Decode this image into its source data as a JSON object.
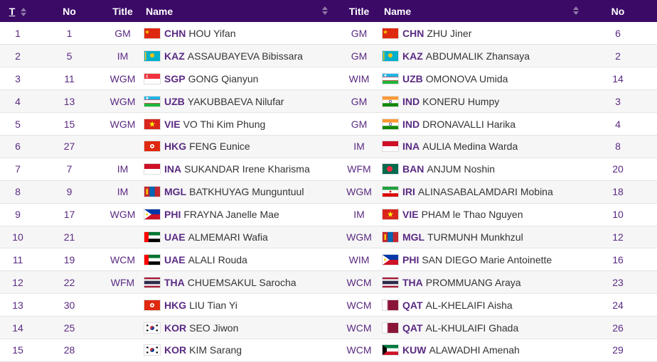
{
  "columns": {
    "table": "T",
    "no": "No",
    "title": "Title",
    "name": "Name",
    "title2": "Title",
    "name2": "Name",
    "no2": "No"
  },
  "rows": [
    {
      "t": "1",
      "no": "1",
      "title": "GM",
      "fed": "CHN",
      "name": "HOU Yifan",
      "title2": "GM",
      "fed2": "CHN",
      "name2": "ZHU Jiner",
      "no2": "6"
    },
    {
      "t": "2",
      "no": "5",
      "title": "IM",
      "fed": "KAZ",
      "name": "ASSAUBAYEVA Bibissara",
      "title2": "GM",
      "fed2": "KAZ",
      "name2": "ABDUMALIK Zhansaya",
      "no2": "2"
    },
    {
      "t": "3",
      "no": "11",
      "title": "WGM",
      "fed": "SGP",
      "name": "GONG Qianyun",
      "title2": "WIM",
      "fed2": "UZB",
      "name2": "OMONOVA Umida",
      "no2": "14"
    },
    {
      "t": "4",
      "no": "13",
      "title": "WGM",
      "fed": "UZB",
      "name": "YAKUBBAEVA Nilufar",
      "title2": "GM",
      "fed2": "IND",
      "name2": "KONERU Humpy",
      "no2": "3"
    },
    {
      "t": "5",
      "no": "15",
      "title": "WGM",
      "fed": "VIE",
      "name": "VO Thi Kim Phung",
      "title2": "GM",
      "fed2": "IND",
      "name2": "DRONAVALLI Harika",
      "no2": "4"
    },
    {
      "t": "6",
      "no": "27",
      "title": "",
      "fed": "HKG",
      "name": "FENG Eunice",
      "title2": "IM",
      "fed2": "INA",
      "name2": "AULIA Medina Warda",
      "no2": "8"
    },
    {
      "t": "7",
      "no": "7",
      "title": "IM",
      "fed": "INA",
      "name": "SUKANDAR Irene Kharisma",
      "title2": "WFM",
      "fed2": "BAN",
      "name2": "ANJUM Noshin",
      "no2": "20"
    },
    {
      "t": "8",
      "no": "9",
      "title": "IM",
      "fed": "MGL",
      "name": "BATKHUYAG Munguntuul",
      "title2": "WGM",
      "fed2": "IRI",
      "name2": "ALINASABALAMDARI Mobina",
      "no2": "18"
    },
    {
      "t": "9",
      "no": "17",
      "title": "WGM",
      "fed": "PHI",
      "name": "FRAYNA Janelle Mae",
      "title2": "IM",
      "fed2": "VIE",
      "name2": "PHAM le Thao Nguyen",
      "no2": "10"
    },
    {
      "t": "10",
      "no": "21",
      "title": "",
      "fed": "UAE",
      "name": "ALMEMARI Wafia",
      "title2": "WGM",
      "fed2": "MGL",
      "name2": "TURMUNH Munkhzul",
      "no2": "12"
    },
    {
      "t": "11",
      "no": "19",
      "title": "WCM",
      "fed": "UAE",
      "name": "ALALI Rouda",
      "title2": "WIM",
      "fed2": "PHI",
      "name2": "SAN DIEGO Marie Antoinette",
      "no2": "16"
    },
    {
      "t": "12",
      "no": "22",
      "title": "WFM",
      "fed": "THA",
      "name": "CHUEMSAKUL Sarocha",
      "title2": "WCM",
      "fed2": "THA",
      "name2": "PROMMUANG Araya",
      "no2": "23"
    },
    {
      "t": "13",
      "no": "30",
      "title": "",
      "fed": "HKG",
      "name": "LIU Tian Yi",
      "title2": "WCM",
      "fed2": "QAT",
      "name2": "AL-KHELAIFI Aisha",
      "no2": "24"
    },
    {
      "t": "14",
      "no": "25",
      "title": "",
      "fed": "KOR",
      "name": "SEO Jiwon",
      "title2": "WCM",
      "fed2": "QAT",
      "name2": "AL-KHULAIFI Ghada",
      "no2": "26"
    },
    {
      "t": "15",
      "no": "28",
      "title": "",
      "fed": "KOR",
      "name": "KIM Sarang",
      "title2": "WCM",
      "fed2": "KUW",
      "name2": "ALAWADHI Amenah",
      "no2": "29"
    }
  ],
  "colors": {
    "header_bg": "#3b0a66",
    "accent": "#5a2a82",
    "row_alt": "#f6f6f6"
  }
}
